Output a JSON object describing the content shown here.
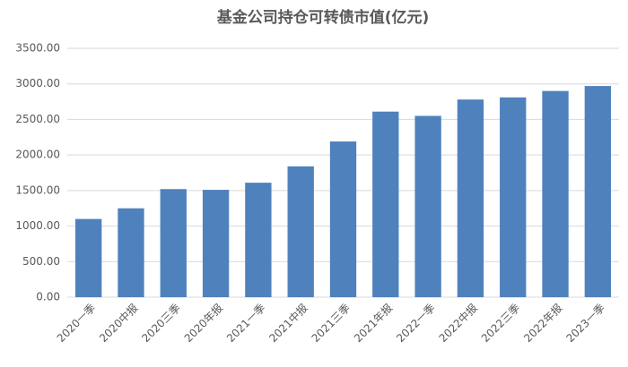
{
  "chart_data": {
    "type": "bar",
    "title": "基金公司持仓可转债市值(亿元)",
    "categories": [
      "2020一季",
      "2020中报",
      "2020三季",
      "2020年报",
      "2021一季",
      "2021中报",
      "2021三季",
      "2021年报",
      "2022一季",
      "2022中报",
      "2022三季",
      "2022年报",
      "2023一季"
    ],
    "values": [
      1100,
      1250,
      1520,
      1510,
      1610,
      1840,
      2190,
      2610,
      2550,
      2780,
      2810,
      2900,
      2970
    ],
    "color": "#4f81bd",
    "ylim": [
      0,
      3500
    ],
    "yticks": [
      {
        "value": 0,
        "label": "0.00"
      },
      {
        "value": 500,
        "label": "500.00"
      },
      {
        "value": 1000,
        "label": "1000.00"
      },
      {
        "value": 1500,
        "label": "1500.00"
      },
      {
        "value": 2000,
        "label": "2000.00"
      },
      {
        "value": 2500,
        "label": "2500.00"
      },
      {
        "value": 3000,
        "label": "3000.00"
      },
      {
        "value": 3500,
        "label": "3500.00"
      }
    ],
    "grid": true
  }
}
